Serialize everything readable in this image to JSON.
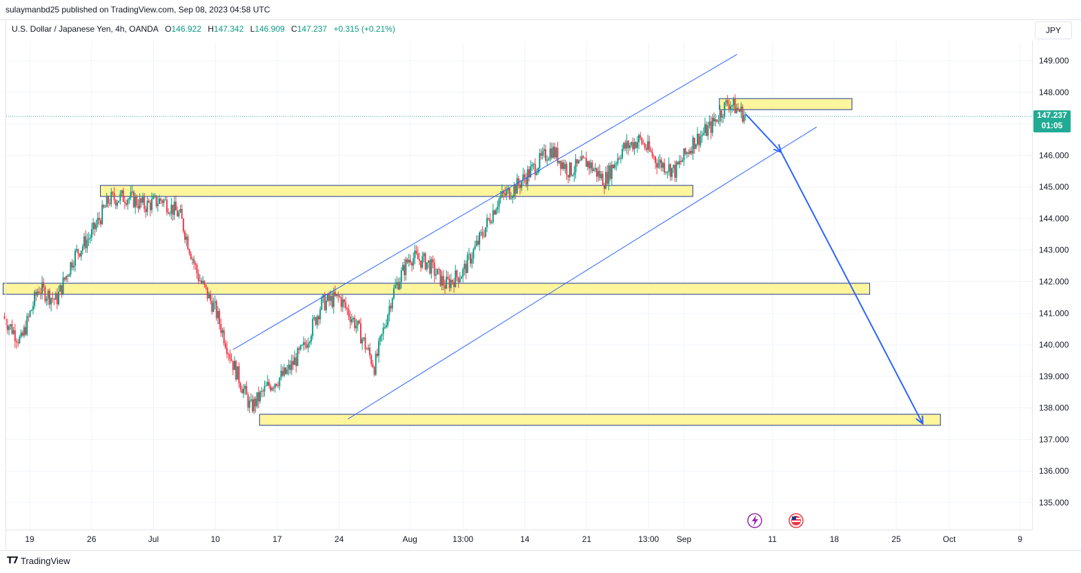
{
  "header": {
    "publisher": "sulaymanbd25 published on TradingView.com, Sep 08, 2023 04:58 UTC"
  },
  "legend": {
    "symbol": "U.S. Dollar / Japanese Yen, 4h, OANDA",
    "o_label": "O",
    "o_value": "146.922",
    "h_label": "H",
    "h_value": "147.342",
    "l_label": "L",
    "l_value": "146.909",
    "c_label": "C",
    "c_value": "147.237",
    "change": "+0.315 (+0.21%)"
  },
  "currency_button": "JPY",
  "current_price": {
    "price": "147.237",
    "countdown": "01:05",
    "color": "#22ab94"
  },
  "footer": {
    "brand": "TradingView"
  },
  "colors": {
    "up": "#089981",
    "down": "#f23645",
    "zone_fill": "#fff59d",
    "zone_border": "#1e3a8a",
    "channel": "#2962ff",
    "arrow": "#2962ff"
  },
  "chart_data": {
    "type": "candlestick",
    "symbol": "USDJPY",
    "timeframe": "4h",
    "y_ticks": [
      "149.000",
      "148.000",
      "147.000",
      "146.000",
      "145.000",
      "144.000",
      "143.000",
      "142.000",
      "141.000",
      "140.000",
      "139.000",
      "138.000",
      "137.000",
      "136.000",
      "135.000"
    ],
    "x_ticks": [
      "19",
      "26",
      "Jul",
      "10",
      "17",
      "24",
      "Aug",
      "13:00",
      "14",
      "21",
      "13:00",
      "Sep",
      "11",
      "18",
      "25",
      "Oct",
      "9"
    ],
    "ylim": [
      134.2,
      150.2
    ],
    "price_path": [
      {
        "date": "2023-06-16",
        "price": 140.9
      },
      {
        "date": "2023-06-18",
        "price": 140.1
      },
      {
        "date": "2023-06-20",
        "price": 141.8
      },
      {
        "date": "2023-06-22",
        "price": 141.4
      },
      {
        "date": "2023-06-24",
        "price": 142.8
      },
      {
        "date": "2023-06-26",
        "price": 143.5
      },
      {
        "date": "2023-06-28",
        "price": 144.6
      },
      {
        "date": "2023-06-30",
        "price": 144.7
      },
      {
        "date": "2023-07-02",
        "price": 144.4
      },
      {
        "date": "2023-07-04",
        "price": 144.6
      },
      {
        "date": "2023-07-06",
        "price": 144.1
      },
      {
        "date": "2023-07-08",
        "price": 142.2
      },
      {
        "date": "2023-07-10",
        "price": 141.1
      },
      {
        "date": "2023-07-12",
        "price": 139.4
      },
      {
        "date": "2023-07-14",
        "price": 138.0
      },
      {
        "date": "2023-07-16",
        "price": 138.7
      },
      {
        "date": "2023-07-18",
        "price": 139.1
      },
      {
        "date": "2023-07-20",
        "price": 139.9
      },
      {
        "date": "2023-07-22",
        "price": 141.3
      },
      {
        "date": "2023-07-24",
        "price": 141.5
      },
      {
        "date": "2023-07-26",
        "price": 140.6
      },
      {
        "date": "2023-07-28",
        "price": 139.3
      },
      {
        "date": "2023-07-30",
        "price": 141.6
      },
      {
        "date": "2023-08-01",
        "price": 142.8
      },
      {
        "date": "2023-08-03",
        "price": 142.6
      },
      {
        "date": "2023-08-05",
        "price": 141.9
      },
      {
        "date": "2023-08-07",
        "price": 142.3
      },
      {
        "date": "2023-08-09",
        "price": 143.4
      },
      {
        "date": "2023-08-11",
        "price": 144.6
      },
      {
        "date": "2023-08-13",
        "price": 145.0
      },
      {
        "date": "2023-08-15",
        "price": 145.6
      },
      {
        "date": "2023-08-17",
        "price": 146.2
      },
      {
        "date": "2023-08-19",
        "price": 145.5
      },
      {
        "date": "2023-08-21",
        "price": 145.8
      },
      {
        "date": "2023-08-23",
        "price": 145.2
      },
      {
        "date": "2023-08-25",
        "price": 146.2
      },
      {
        "date": "2023-08-27",
        "price": 146.5
      },
      {
        "date": "2023-08-29",
        "price": 145.8
      },
      {
        "date": "2023-08-31",
        "price": 145.5
      },
      {
        "date": "2023-09-02",
        "price": 146.4
      },
      {
        "date": "2023-09-04",
        "price": 146.9
      },
      {
        "date": "2023-09-06",
        "price": 147.7
      },
      {
        "date": "2023-09-08",
        "price": 147.24
      }
    ],
    "zones": [
      {
        "start": "2023-09-05",
        "end": "2023-09-20",
        "low": 147.45,
        "high": 147.8
      },
      {
        "start": "2023-06-27",
        "end": "2023-09-02",
        "low": 144.7,
        "high": 145.05
      },
      {
        "start": "2023-06-16",
        "end": "2023-09-22",
        "low": 141.6,
        "high": 141.95
      },
      {
        "start": "2023-07-15",
        "end": "2023-09-30",
        "low": 137.45,
        "high": 137.8
      }
    ],
    "channel_lines": [
      {
        "from": {
          "date": "2023-07-12",
          "price": 139.85
        },
        "to": {
          "date": "2023-09-07",
          "price": 149.2
        }
      },
      {
        "from": {
          "date": "2023-07-25",
          "price": 137.65
        },
        "to": {
          "date": "2023-09-16",
          "price": 146.9
        }
      }
    ],
    "projection_arrows": [
      {
        "from": {
          "date": "2023-09-08",
          "price": 147.3
        },
        "to": {
          "date": "2023-09-12",
          "price": 146.1
        }
      },
      {
        "from": {
          "date": "2023-09-12",
          "price": 146.1
        },
        "to": {
          "date": "2023-09-28",
          "price": 137.5
        }
      }
    ]
  }
}
